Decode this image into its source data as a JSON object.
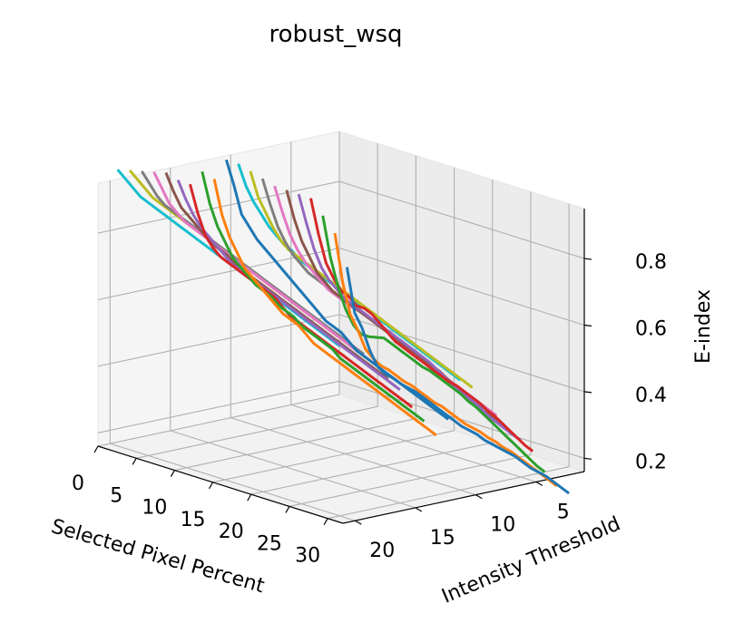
{
  "chart_data": {
    "type": "line",
    "title": "robust_wsq",
    "xlabel": "Selected Pixel Percent",
    "ylabel": "Intensity Threshold",
    "zlabel": "E-index",
    "xlim": [
      0,
      32
    ],
    "ylim": [
      1,
      21
    ],
    "zlim": [
      0.16,
      0.95
    ],
    "xticks": [
      "0",
      "5",
      "10",
      "15",
      "20",
      "25",
      "30"
    ],
    "yticks": [
      "5",
      "10",
      "15",
      "20"
    ],
    "zticks": [
      "0.2",
      "0.4",
      "0.6",
      "0.8"
    ],
    "grid": true,
    "x": [
      1,
      2,
      3,
      4,
      5,
      6,
      7,
      8,
      9,
      10,
      11,
      12,
      13,
      14,
      15,
      16,
      17,
      18,
      19,
      20,
      21,
      22,
      23,
      24,
      25,
      26,
      27,
      28,
      29,
      30
    ],
    "series": [
      {
        "threshold": 1,
        "color": "#1f77b4",
        "values": [
          0.55,
          0.42,
          0.38,
          0.32,
          0.28,
          0.265,
          0.26,
          0.25,
          0.245,
          0.24,
          0.23,
          0.22,
          0.21,
          0.2,
          0.19,
          0.18,
          0.175,
          0.17,
          0.16,
          0.155,
          0.15,
          0.145,
          0.14,
          0.13,
          0.12,
          0.115,
          0.11,
          0.1,
          0.09,
          0.08
        ]
      },
      {
        "threshold": 2,
        "color": "#ff7f0e",
        "values": [
          0.66,
          0.52,
          0.43,
          0.39,
          0.34,
          0.32,
          0.305,
          0.3,
          0.29,
          0.28,
          0.275,
          0.265,
          0.255,
          0.245,
          0.24,
          0.23,
          0.22,
          0.21,
          0.205,
          0.2,
          0.19,
          0.185,
          0.175,
          0.17,
          0.16,
          0.15,
          0.14,
          0.13,
          0.12,
          0.11
        ]
      },
      {
        "threshold": 3,
        "color": "#2ca02c",
        "values": [
          0.72,
          0.6,
          0.52,
          0.46,
          0.42,
          0.4,
          0.4,
          0.405,
          0.41,
          0.4,
          0.39,
          0.38,
          0.37,
          0.36,
          0.355,
          0.345,
          0.335,
          0.325,
          0.315,
          0.3,
          0.29,
          0.275,
          0.26,
          0.245,
          0.23,
          0.215,
          0.2,
          0.185,
          0.17,
          0.16
        ]
      },
      {
        "threshold": 4,
        "color": "#d62728",
        "values": [
          0.78,
          0.68,
          0.6,
          0.56,
          0.53,
          0.52,
          0.5,
          0.5,
          0.49,
          0.47,
          0.45,
          0.43,
          0.42,
          0.41,
          0.4,
          0.39,
          0.38,
          0.37,
          0.36,
          0.355,
          0.345,
          0.335,
          0.325,
          0.31,
          0.3,
          0.285,
          0.27,
          0.255,
          0.24,
          0.23
        ]
      },
      {
        "threshold": 5,
        "color": "#9467bd",
        "values": [
          0.8,
          0.72,
          0.65,
          0.6,
          0.57,
          0.55,
          0.53,
          0.52,
          0.51,
          0.5,
          0.49,
          0.48,
          0.47,
          0.46,
          0.45,
          0.44,
          0.43,
          0.42,
          0.405,
          0.39,
          0.375,
          0.36,
          0.35,
          0.34,
          0.325,
          0.31,
          0.3,
          0.29,
          0.28,
          0.27
        ]
      },
      {
        "threshold": 6,
        "color": "#8c564b",
        "values": [
          0.82,
          0.74,
          0.68,
          0.64,
          0.6,
          0.58,
          0.56,
          0.55,
          0.54,
          0.53,
          0.52,
          0.51,
          0.5,
          0.49,
          0.48,
          0.47,
          0.46,
          0.45,
          0.44,
          0.43,
          0.42,
          0.405,
          0.39,
          0.375,
          0.36,
          0.35,
          0.34,
          0.33,
          0.32,
          0.31
        ]
      },
      {
        "threshold": 7,
        "color": "#e377c2",
        "values": [
          0.84,
          0.77,
          0.71,
          0.67,
          0.64,
          0.62,
          0.6,
          0.58,
          0.57,
          0.56,
          0.55,
          0.545,
          0.54,
          0.53,
          0.52,
          0.51,
          0.5,
          0.49,
          0.48,
          0.47,
          0.455,
          0.44,
          0.43,
          0.42,
          0.41,
          0.4,
          0.39,
          0.38,
          0.37,
          0.36
        ]
      },
      {
        "threshold": 8,
        "color": "#7f7f7f",
        "values": [
          0.87,
          0.8,
          0.74,
          0.7,
          0.67,
          0.65,
          0.63,
          0.62,
          0.61,
          0.6,
          0.59,
          0.58,
          0.57,
          0.56,
          0.55,
          0.54,
          0.53,
          0.52,
          0.51,
          0.5,
          0.49,
          0.48,
          0.47,
          0.455,
          0.44,
          0.43,
          0.42,
          0.41,
          0.4,
          0.39
        ]
      },
      {
        "threshold": 9,
        "color": "#bcbd22",
        "values": [
          0.9,
          0.83,
          0.79,
          0.75,
          0.72,
          0.7,
          0.69,
          0.68,
          0.67,
          0.66,
          0.65,
          0.64,
          0.63,
          0.62,
          0.61,
          0.6,
          0.59,
          0.58,
          0.57,
          0.56,
          0.55,
          0.54,
          0.53,
          0.52,
          0.51,
          0.5,
          0.49,
          0.48,
          0.47,
          0.46
        ]
      },
      {
        "threshold": 10,
        "color": "#17becf",
        "values": [
          0.93,
          0.87,
          0.83,
          0.8,
          0.77,
          0.75,
          0.73,
          0.72,
          0.7,
          0.69,
          0.68,
          0.67,
          0.66,
          0.65,
          0.64,
          0.63,
          0.62,
          0.61,
          0.6,
          0.59,
          0.58,
          0.57,
          0.56,
          0.55,
          0.54,
          0.53,
          0.52,
          0.51,
          0.5,
          0.49
        ]
      },
      {
        "threshold": 11,
        "color": "#1f77b4",
        "values": [
          0.95,
          0.88,
          0.8,
          0.77,
          0.74,
          0.72,
          0.7,
          0.68,
          0.66,
          0.64,
          0.62,
          0.6,
          0.58,
          0.56,
          0.55,
          0.54,
          0.52,
          0.5,
          0.49,
          0.48,
          0.47,
          0.46,
          0.45,
          0.44,
          0.43,
          0.42,
          0.41,
          0.4,
          0.39,
          0.38
        ]
      },
      {
        "threshold": 12,
        "color": "#ff7f0e",
        "values": [
          0.9,
          0.8,
          0.74,
          0.7,
          0.66,
          0.64,
          0.62,
          0.6,
          0.58,
          0.56,
          0.55,
          0.54,
          0.52,
          0.5,
          0.49,
          0.48,
          0.47,
          0.46,
          0.45,
          0.44,
          0.43,
          0.42,
          0.41,
          0.4,
          0.39,
          0.38,
          0.37,
          0.36,
          0.35,
          0.34
        ]
      },
      {
        "threshold": 13,
        "color": "#2ca02c",
        "values": [
          0.93,
          0.84,
          0.78,
          0.74,
          0.7,
          0.68,
          0.66,
          0.64,
          0.63,
          0.62,
          0.6,
          0.59,
          0.58,
          0.56,
          0.55,
          0.54,
          0.53,
          0.52,
          0.5,
          0.49,
          0.48,
          0.47,
          0.46,
          0.45,
          0.44,
          0.43,
          0.42,
          0.41,
          0.4,
          0.39
        ]
      },
      {
        "threshold": 14,
        "color": "#d62728",
        "values": [
          0.9,
          0.82,
          0.76,
          0.73,
          0.71,
          0.7,
          0.69,
          0.68,
          0.67,
          0.66,
          0.65,
          0.64,
          0.62,
          0.6,
          0.59,
          0.58,
          0.57,
          0.56,
          0.55,
          0.54,
          0.53,
          0.52,
          0.51,
          0.5,
          0.49,
          0.48,
          0.47,
          0.46,
          0.45,
          0.44
        ]
      },
      {
        "threshold": 15,
        "color": "#9467bd",
        "values": [
          0.92,
          0.87,
          0.83,
          0.8,
          0.78,
          0.76,
          0.74,
          0.72,
          0.71,
          0.7,
          0.69,
          0.68,
          0.67,
          0.66,
          0.65,
          0.64,
          0.63,
          0.62,
          0.61,
          0.6,
          0.59,
          0.58,
          0.57,
          0.56,
          0.55,
          0.54,
          0.53,
          0.52,
          0.51,
          0.5
        ]
      },
      {
        "threshold": 16,
        "color": "#8c564b",
        "values": [
          0.95,
          0.9,
          0.86,
          0.84,
          0.82,
          0.8,
          0.78,
          0.77,
          0.76,
          0.74,
          0.73,
          0.72,
          0.71,
          0.7,
          0.69,
          0.68,
          0.67,
          0.66,
          0.65,
          0.64,
          0.63,
          0.62,
          0.61,
          0.6,
          0.59,
          0.58,
          0.57,
          0.56,
          0.55,
          0.54
        ]
      },
      {
        "threshold": 17,
        "color": "#e377c2",
        "values": [
          0.96,
          0.92,
          0.88,
          0.86,
          0.84,
          0.83,
          0.82,
          0.81,
          0.8,
          0.79,
          0.78,
          0.77,
          0.76,
          0.75,
          0.74,
          0.73,
          0.72,
          0.71,
          0.7,
          0.69,
          0.68,
          0.67,
          0.66,
          0.65,
          0.64,
          0.63,
          0.62,
          0.61,
          0.6,
          0.59
        ]
      },
      {
        "threshold": 18,
        "color": "#7f7f7f",
        "values": [
          0.97,
          0.94,
          0.91,
          0.89,
          0.88,
          0.87,
          0.86,
          0.85,
          0.84,
          0.83,
          0.82,
          0.81,
          0.8,
          0.79,
          0.78,
          0.77,
          0.76,
          0.75,
          0.74,
          0.73,
          0.72,
          0.71,
          0.7,
          0.69,
          0.68,
          0.67,
          0.66,
          0.65,
          0.64,
          0.63
        ]
      },
      {
        "threshold": 19,
        "color": "#bcbd22",
        "values": [
          0.98,
          0.96,
          0.94,
          0.92,
          0.91,
          0.9,
          0.89,
          0.88,
          0.87,
          0.86,
          0.85,
          0.84,
          0.83,
          0.82,
          0.81,
          0.8,
          0.79,
          0.78,
          0.77,
          0.76,
          0.75,
          0.74,
          0.73,
          0.72,
          0.71,
          0.7,
          0.69,
          0.68,
          0.67,
          0.66
        ]
      },
      {
        "threshold": 20,
        "color": "#17becf",
        "values": [
          0.99,
          0.97,
          0.95,
          0.93,
          0.92,
          0.91,
          0.9,
          0.89,
          0.88,
          0.87,
          0.86,
          0.85,
          0.84,
          0.83,
          0.82,
          0.81,
          0.8,
          0.79,
          0.78,
          0.77,
          0.76,
          0.75,
          0.74,
          0.73,
          0.72,
          0.71,
          0.7,
          0.69,
          0.68,
          0.67
        ]
      }
    ]
  }
}
